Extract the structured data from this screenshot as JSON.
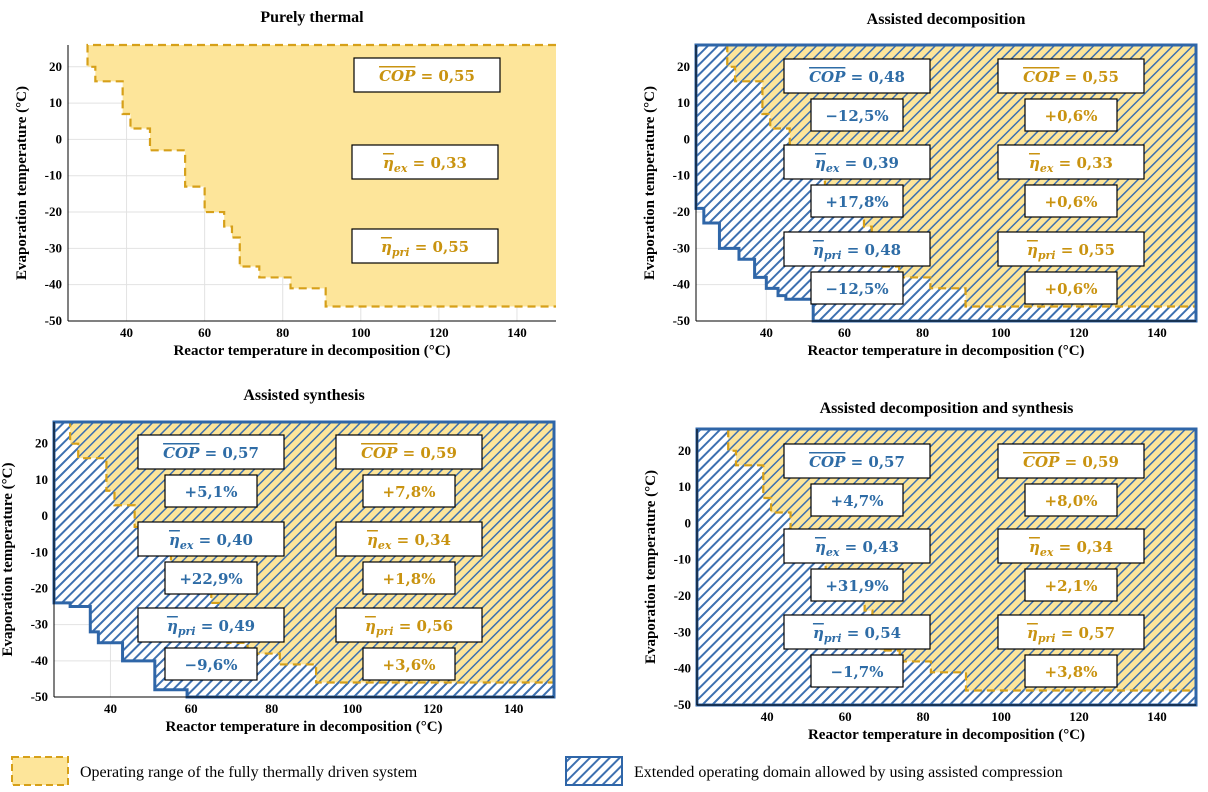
{
  "colors": {
    "thermal_fill": "#fde59a",
    "thermal_edge": "#d6a019",
    "assisted_edge": "#2f66a8",
    "assisted_hatch": "#3d70b0",
    "text_blue": "#2e6ca6",
    "text_gold": "#c99310"
  },
  "legend": {
    "thermal": "Operating range of the fully thermally driven system",
    "assisted": "Extended operating domain allowed by using assisted compression"
  },
  "chart_data": [
    {
      "type": "area",
      "title": "Purely thermal",
      "xlabel": "Reactor temperature in decomposition (°C)",
      "ylabel": "Evaporation temperature (°C)",
      "xlim": [
        25,
        150
      ],
      "ylim": [
        -50,
        26
      ],
      "xticks": [
        40,
        60,
        80,
        100,
        120,
        140
      ],
      "yticks": [
        -50,
        -40,
        -30,
        -20,
        -10,
        0,
        10,
        20
      ],
      "grid": true,
      "thermal_boundary": [
        [
          30,
          25
        ],
        [
          30,
          20
        ],
        [
          32,
          20
        ],
        [
          32,
          16
        ],
        [
          39,
          16
        ],
        [
          39,
          7
        ],
        [
          41,
          7
        ],
        [
          41,
          3
        ],
        [
          46,
          3
        ],
        [
          46,
          -3
        ],
        [
          55,
          -3
        ],
        [
          55,
          -13
        ],
        [
          60,
          -13
        ],
        [
          60,
          -20
        ],
        [
          65,
          -20
        ],
        [
          65,
          -24
        ],
        [
          67,
          -24
        ],
        [
          67,
          -27
        ],
        [
          69,
          -27
        ],
        [
          69,
          -35
        ],
        [
          74,
          -35
        ],
        [
          74,
          -38
        ],
        [
          82,
          -38
        ],
        [
          82,
          -41
        ],
        [
          91,
          -41
        ],
        [
          91,
          -46
        ],
        [
          150,
          -46
        ]
      ],
      "assisted_boundary": null,
      "boxes": [
        {
          "label": "COP",
          "text": " = 0,55",
          "color": "gold",
          "change": ""
        },
        {
          "label": "η",
          "sub": "ex",
          "text": " = 0,33",
          "color": "gold",
          "change": ""
        },
        {
          "label": "η",
          "sub": "pri",
          "text": " = 0,55",
          "color": "gold",
          "change": ""
        }
      ]
    },
    {
      "type": "area",
      "title": "Assisted decomposition",
      "xlabel": "Reactor temperature in decomposition (°C)",
      "ylabel": "Evaporation temperature (°C)",
      "xlim": [
        22,
        150
      ],
      "ylim": [
        -50,
        26
      ],
      "xticks": [
        40,
        60,
        80,
        100,
        120,
        140
      ],
      "yticks": [
        -50,
        -40,
        -30,
        -20,
        -10,
        0,
        10,
        20
      ],
      "grid": true,
      "thermal_boundary": [
        [
          30,
          25
        ],
        [
          30,
          20
        ],
        [
          32,
          20
        ],
        [
          32,
          16
        ],
        [
          39,
          16
        ],
        [
          39,
          7
        ],
        [
          41,
          7
        ],
        [
          41,
          3
        ],
        [
          46,
          3
        ],
        [
          46,
          -3
        ],
        [
          55,
          -3
        ],
        [
          55,
          -13
        ],
        [
          60,
          -13
        ],
        [
          60,
          -20
        ],
        [
          65,
          -20
        ],
        [
          65,
          -24
        ],
        [
          67,
          -24
        ],
        [
          67,
          -27
        ],
        [
          69,
          -27
        ],
        [
          69,
          -35
        ],
        [
          74,
          -35
        ],
        [
          74,
          -38
        ],
        [
          82,
          -38
        ],
        [
          82,
          -41
        ],
        [
          91,
          -41
        ],
        [
          91,
          -46
        ],
        [
          150,
          -46
        ]
      ],
      "assisted_boundary": [
        [
          22,
          26
        ],
        [
          22,
          -19
        ],
        [
          24,
          -19
        ],
        [
          24,
          -23
        ],
        [
          28,
          -23
        ],
        [
          28,
          -30
        ],
        [
          33,
          -30
        ],
        [
          33,
          -33
        ],
        [
          37,
          -33
        ],
        [
          37,
          -38
        ],
        [
          40,
          -38
        ],
        [
          40,
          -41
        ],
        [
          43,
          -41
        ],
        [
          43,
          -43
        ],
        [
          45,
          -43
        ],
        [
          45,
          -44
        ],
        [
          52,
          -44
        ],
        [
          52,
          -50
        ],
        [
          150,
          -50
        ]
      ],
      "boxes": [
        {
          "label": "COP",
          "text": " = 0,48",
          "color": "blue",
          "change": "−12,5%"
        },
        {
          "label": "COP",
          "text": " = 0,55",
          "color": "gold",
          "change": "+0,6%"
        },
        {
          "label": "η",
          "sub": "ex",
          "text": " = 0,39",
          "color": "blue",
          "change": "+17,8%"
        },
        {
          "label": "η",
          "sub": "ex",
          "text": " = 0,33",
          "color": "gold",
          "change": "+0,6%"
        },
        {
          "label": "η",
          "sub": "pri",
          "text": " = 0,48",
          "color": "blue",
          "change": "−12,5%"
        },
        {
          "label": "η",
          "sub": "pri",
          "text": " = 0,55",
          "color": "gold",
          "change": "+0,6%"
        }
      ]
    },
    {
      "type": "area",
      "title": "Assisted synthesis",
      "xlabel": "Reactor temperature in decomposition (°C)",
      "ylabel": "Evaporation temperature (°C)",
      "xlim": [
        26,
        150
      ],
      "ylim": [
        -50,
        26
      ],
      "xticks": [
        40,
        60,
        80,
        100,
        120,
        140
      ],
      "yticks": [
        -50,
        -40,
        -30,
        -20,
        -10,
        0,
        10,
        20
      ],
      "grid": true,
      "thermal_boundary": [
        [
          30,
          25
        ],
        [
          30,
          20
        ],
        [
          32,
          20
        ],
        [
          32,
          16
        ],
        [
          39,
          16
        ],
        [
          39,
          7
        ],
        [
          41,
          7
        ],
        [
          41,
          3
        ],
        [
          46,
          3
        ],
        [
          46,
          -3
        ],
        [
          55,
          -3
        ],
        [
          55,
          -13
        ],
        [
          60,
          -13
        ],
        [
          60,
          -20
        ],
        [
          65,
          -20
        ],
        [
          65,
          -24
        ],
        [
          67,
          -24
        ],
        [
          67,
          -27
        ],
        [
          69,
          -27
        ],
        [
          69,
          -35
        ],
        [
          74,
          -35
        ],
        [
          74,
          -38
        ],
        [
          82,
          -38
        ],
        [
          82,
          -41
        ],
        [
          91,
          -41
        ],
        [
          91,
          -46
        ],
        [
          150,
          -46
        ]
      ],
      "assisted_boundary": [
        [
          26,
          26
        ],
        [
          26,
          -24
        ],
        [
          30,
          -24
        ],
        [
          30,
          -25
        ],
        [
          35,
          -25
        ],
        [
          35,
          -32
        ],
        [
          37,
          -32
        ],
        [
          37,
          -35
        ],
        [
          43,
          -35
        ],
        [
          43,
          -40
        ],
        [
          51,
          -40
        ],
        [
          51,
          -48
        ],
        [
          59,
          -48
        ],
        [
          59,
          -50
        ],
        [
          150,
          -50
        ]
      ],
      "boxes": [
        {
          "label": "COP",
          "text": " = 0,57",
          "color": "blue",
          "change": "+5,1%"
        },
        {
          "label": "COP",
          "text": " = 0,59",
          "color": "gold",
          "change": "+7,8%"
        },
        {
          "label": "η",
          "sub": "ex",
          "text": " = 0,40",
          "color": "blue",
          "change": "+22,9%"
        },
        {
          "label": "η",
          "sub": "ex",
          "text": " = 0,34",
          "color": "gold",
          "change": "+1,8%"
        },
        {
          "label": "η",
          "sub": "pri",
          "text": " = 0,49",
          "color": "blue",
          "change": "−9,6%"
        },
        {
          "label": "η",
          "sub": "pri",
          "text": " = 0,56",
          "color": "gold",
          "change": "+3,6%"
        }
      ]
    },
    {
      "type": "area",
      "title": "Assisted decomposition and synthesis",
      "xlabel": "Reactor temperature in decomposition (°C)",
      "ylabel": "Evaporation temperature (°C)",
      "xlim": [
        22,
        150
      ],
      "ylim": [
        -50,
        26
      ],
      "xticks": [
        40,
        60,
        80,
        100,
        120,
        140
      ],
      "yticks": [
        -50,
        -40,
        -30,
        -20,
        -10,
        0,
        10,
        20
      ],
      "grid": true,
      "thermal_boundary": [
        [
          30,
          25
        ],
        [
          30,
          20
        ],
        [
          32,
          20
        ],
        [
          32,
          16
        ],
        [
          39,
          16
        ],
        [
          39,
          7
        ],
        [
          41,
          7
        ],
        [
          41,
          3
        ],
        [
          46,
          3
        ],
        [
          46,
          -3
        ],
        [
          55,
          -3
        ],
        [
          55,
          -13
        ],
        [
          60,
          -13
        ],
        [
          60,
          -20
        ],
        [
          65,
          -20
        ],
        [
          65,
          -24
        ],
        [
          67,
          -24
        ],
        [
          67,
          -27
        ],
        [
          69,
          -27
        ],
        [
          69,
          -35
        ],
        [
          74,
          -35
        ],
        [
          74,
          -38
        ],
        [
          82,
          -38
        ],
        [
          82,
          -41
        ],
        [
          91,
          -41
        ],
        [
          91,
          -46
        ],
        [
          150,
          -46
        ]
      ],
      "assisted_boundary": [
        [
          22,
          26
        ],
        [
          22,
          -50
        ],
        [
          150,
          -50
        ]
      ],
      "boxes": [
        {
          "label": "COP",
          "text": " = 0,57",
          "color": "blue",
          "change": "+4,7%"
        },
        {
          "label": "COP",
          "text": " = 0,59",
          "color": "gold",
          "change": "+8,0%"
        },
        {
          "label": "η",
          "sub": "ex",
          "text": " = 0,43",
          "color": "blue",
          "change": "+31,9%"
        },
        {
          "label": "η",
          "sub": "ex",
          "text": " = 0,34",
          "color": "gold",
          "change": "+2,1%"
        },
        {
          "label": "η",
          "sub": "pri",
          "text": " = 0,54",
          "color": "blue",
          "change": "−1,7%"
        },
        {
          "label": "η",
          "sub": "pri",
          "text": " = 0,57",
          "color": "gold",
          "change": "+3,8%"
        }
      ]
    }
  ]
}
